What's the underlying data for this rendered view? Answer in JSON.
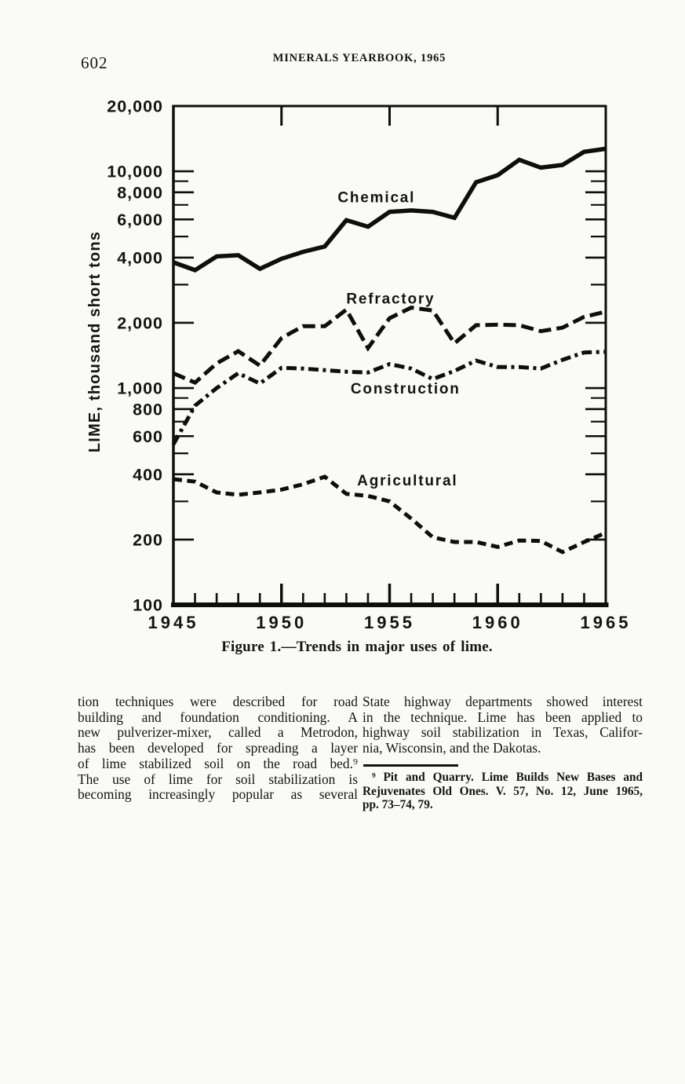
{
  "page": {
    "number": "602",
    "header_title": "MINERALS YEARBOOK, 1965"
  },
  "figure_caption": "Figure 1.—Trends in major uses of lime.",
  "chart_data": {
    "type": "line",
    "title": "Figure 1.—Trends in major uses of lime.",
    "xlabel": "",
    "ylabel": "LIME, thousand short tons",
    "y_scale": "log",
    "y_range": [
      100,
      20000
    ],
    "x_range": [
      1945,
      1965
    ],
    "grid": false,
    "legend": "inline-labels",
    "ink_color": "#0e0e0e",
    "x_major_ticks": [
      1945,
      1950,
      1955,
      1960,
      1965
    ],
    "x_major_tick_labels": [
      "1945",
      "1950",
      "1955",
      "1960",
      "1965"
    ],
    "x_minor_tick_step": 1,
    "y_major_ticks": [
      20000,
      10000,
      8000,
      6000,
      4000,
      2000,
      1000,
      800,
      600,
      400,
      200,
      100
    ],
    "y_major_tick_labels": [
      "20,000",
      "10,000",
      "8,000",
      "6,000",
      "4,000",
      "2,000",
      "1,000",
      "800",
      "600",
      "400",
      "200",
      "100"
    ],
    "y_minor_ticks": [
      9000,
      7000,
      5000,
      3000,
      900,
      700,
      500,
      300
    ],
    "x": [
      1945,
      1946,
      1947,
      1948,
      1949,
      1950,
      1951,
      1952,
      1953,
      1954,
      1955,
      1956,
      1957,
      1958,
      1959,
      1960,
      1961,
      1962,
      1963,
      1964,
      1965
    ],
    "series": [
      {
        "name": "Chemical",
        "line_style": "solid",
        "color": "#0e0e0e",
        "label_pos": {
          "x": 1952.6,
          "y": 7200
        },
        "values": [
          3800,
          3500,
          4050,
          4100,
          3550,
          3950,
          4250,
          4500,
          5950,
          5550,
          6500,
          6600,
          6500,
          6100,
          8900,
          9600,
          11300,
          10400,
          10700,
          12300,
          12700
        ]
      },
      {
        "name": "Refractory",
        "line_style": "dashed",
        "color": "#0e0e0e",
        "label_pos": {
          "x": 1953.0,
          "y": 2450
        },
        "values": [
          1170,
          1060,
          1300,
          1480,
          1270,
          1700,
          1930,
          1930,
          2300,
          1530,
          2100,
          2350,
          2280,
          1610,
          1950,
          1960,
          1950,
          1830,
          1900,
          2130,
          2250
        ]
      },
      {
        "name": "Construction",
        "line_style": "dash-dot",
        "color": "#0e0e0e",
        "label_pos": {
          "x": 1953.2,
          "y": 945
        },
        "values": [
          550,
          830,
          1000,
          1170,
          1050,
          1240,
          1230,
          1210,
          1190,
          1180,
          1290,
          1230,
          1100,
          1200,
          1340,
          1250,
          1250,
          1230,
          1350,
          1460,
          1470
        ]
      },
      {
        "name": "Agricultural",
        "line_style": "dashed-short",
        "color": "#0e0e0e",
        "label_pos": {
          "x": 1953.5,
          "y": 355
        },
        "values": [
          380,
          370,
          330,
          322,
          330,
          340,
          360,
          390,
          325,
          318,
          300,
          250,
          205,
          195,
          195,
          185,
          198,
          197,
          175,
          195,
          215
        ]
      }
    ]
  },
  "body": {
    "left_column_lines": [
      "tion techniques were described for road",
      "building and foundation conditioning. A",
      "new pulverizer-mixer, called a Metrodon,",
      "has been developed for spreading a layer",
      "of lime stabilized soil on the road bed.⁹",
      "The use of lime for soil stabilization is",
      "becoming increasingly popular as several"
    ],
    "right_column_lines": [
      "State highway departments showed interest",
      "in the technique. Lime has been applied to",
      "highway soil stabilization in Texas, Califor-",
      "nia, Wisconsin, and the Dakotas."
    ],
    "footnote_lines": [
      "⁹ Pit and Quarry. Lime Builds New Bases and",
      "Rejuvenates Old Ones. V. 57, No. 12, June 1965,",
      "pp. 73–74, 79."
    ]
  },
  "colors": {
    "ink": "#141414",
    "paper": "#fafaf8"
  }
}
